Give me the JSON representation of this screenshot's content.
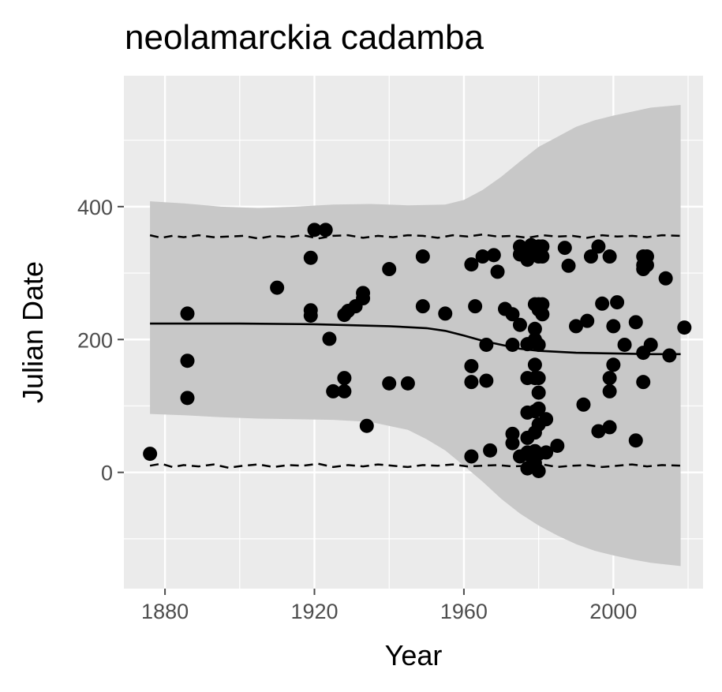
{
  "chart_data": {
    "type": "scatter",
    "title": "neolamarckia cadamba",
    "xlabel": "Year",
    "ylabel": "Julian Date",
    "xlim": [
      1869,
      2024
    ],
    "ylim": [
      -175,
      597
    ],
    "x_ticks": [
      1880,
      1920,
      1960,
      2000
    ],
    "y_ticks": [
      0,
      200,
      400
    ],
    "grid": true,
    "legend": "none",
    "colors": {
      "panel": "#ebebeb",
      "grid": "#ffffff",
      "ribbon": "#c8c8c8",
      "points": "#000000",
      "lines": "#000000",
      "ticks": "#4d4d4d"
    },
    "points": [
      [
        1876,
        28
      ],
      [
        1886,
        239
      ],
      [
        1886,
        168
      ],
      [
        1886,
        112
      ],
      [
        1910,
        278
      ],
      [
        1919,
        323
      ],
      [
        1919,
        244
      ],
      [
        1919,
        236
      ],
      [
        1920,
        365
      ],
      [
        1923,
        365
      ],
      [
        1924,
        201
      ],
      [
        1925,
        122
      ],
      [
        1928,
        142
      ],
      [
        1928,
        122
      ],
      [
        1928,
        237
      ],
      [
        1929,
        243
      ],
      [
        1931,
        250
      ],
      [
        1933,
        270
      ],
      [
        1933,
        262
      ],
      [
        1934,
        70
      ],
      [
        1940,
        306
      ],
      [
        1940,
        134
      ],
      [
        1945,
        134
      ],
      [
        1949,
        325
      ],
      [
        1949,
        250
      ],
      [
        1955,
        239
      ],
      [
        1962,
        313
      ],
      [
        1962,
        160
      ],
      [
        1962,
        136
      ],
      [
        1962,
        24
      ],
      [
        1963,
        250
      ],
      [
        1965,
        325
      ],
      [
        1966,
        192
      ],
      [
        1966,
        138
      ],
      [
        1967,
        33
      ],
      [
        1968,
        327
      ],
      [
        1969,
        302
      ],
      [
        1971,
        246
      ],
      [
        1973,
        238
      ],
      [
        1973,
        192
      ],
      [
        1973,
        58
      ],
      [
        1973,
        44
      ],
      [
        1975,
        340
      ],
      [
        1975,
        328
      ],
      [
        1975,
        222
      ],
      [
        1975,
        24
      ],
      [
        1976,
        330
      ],
      [
        1977,
        336
      ],
      [
        1977,
        320
      ],
      [
        1977,
        193
      ],
      [
        1977,
        142
      ],
      [
        1977,
        90
      ],
      [
        1977,
        52
      ],
      [
        1977,
        30
      ],
      [
        1977,
        6
      ],
      [
        1978,
        342
      ],
      [
        1978,
        330
      ],
      [
        1978,
        24
      ],
      [
        1979,
        216
      ],
      [
        1979,
        200
      ],
      [
        1979,
        162
      ],
      [
        1979,
        253
      ],
      [
        1979,
        142
      ],
      [
        1979,
        92
      ],
      [
        1979,
        60
      ],
      [
        1979,
        32
      ],
      [
        1979,
        14
      ],
      [
        1979,
        8
      ],
      [
        1980,
        340
      ],
      [
        1980,
        325
      ],
      [
        1980,
        253
      ],
      [
        1980,
        245
      ],
      [
        1980,
        192
      ],
      [
        1980,
        142
      ],
      [
        1980,
        120
      ],
      [
        1980,
        96
      ],
      [
        1980,
        72
      ],
      [
        1980,
        28
      ],
      [
        1980,
        2
      ],
      [
        1981,
        340
      ],
      [
        1981,
        325
      ],
      [
        1981,
        253
      ],
      [
        1981,
        238
      ],
      [
        1982,
        80
      ],
      [
        1982,
        30
      ],
      [
        1985,
        40
      ],
      [
        1987,
        338
      ],
      [
        1988,
        311
      ],
      [
        1990,
        220
      ],
      [
        1992,
        102
      ],
      [
        1993,
        228
      ],
      [
        1994,
        325
      ],
      [
        1996,
        340
      ],
      [
        1996,
        62
      ],
      [
        1997,
        254
      ],
      [
        1999,
        325
      ],
      [
        1999,
        142
      ],
      [
        1999,
        122
      ],
      [
        1999,
        68
      ],
      [
        2000,
        220
      ],
      [
        2000,
        162
      ],
      [
        2001,
        256
      ],
      [
        2003,
        192
      ],
      [
        2006,
        226
      ],
      [
        2006,
        48
      ],
      [
        2008,
        325
      ],
      [
        2008,
        312
      ],
      [
        2008,
        306
      ],
      [
        2008,
        180
      ],
      [
        2008,
        136
      ],
      [
        2009,
        325
      ],
      [
        2009,
        312
      ],
      [
        2010,
        192
      ],
      [
        2014,
        292
      ],
      [
        2015,
        176
      ],
      [
        2019,
        218
      ]
    ],
    "fit_line": [
      [
        1876,
        224
      ],
      [
        1900,
        224
      ],
      [
        1920,
        223
      ],
      [
        1940,
        220
      ],
      [
        1950,
        217
      ],
      [
        1955,
        213
      ],
      [
        1960,
        206
      ],
      [
        1965,
        198
      ],
      [
        1970,
        192
      ],
      [
        1975,
        186
      ],
      [
        1980,
        183
      ],
      [
        1990,
        180
      ],
      [
        2000,
        179
      ],
      [
        2010,
        178
      ],
      [
        2018,
        178
      ]
    ],
    "ribbon_upper": [
      [
        1876,
        408
      ],
      [
        1885,
        405
      ],
      [
        1895,
        400
      ],
      [
        1905,
        398
      ],
      [
        1915,
        400
      ],
      [
        1925,
        403
      ],
      [
        1935,
        404
      ],
      [
        1945,
        402
      ],
      [
        1955,
        403
      ],
      [
        1960,
        410
      ],
      [
        1965,
        425
      ],
      [
        1970,
        445
      ],
      [
        1975,
        468
      ],
      [
        1980,
        490
      ],
      [
        1985,
        505
      ],
      [
        1990,
        520
      ],
      [
        1995,
        530
      ],
      [
        2000,
        537
      ],
      [
        2005,
        543
      ],
      [
        2010,
        549
      ],
      [
        2018,
        553
      ]
    ],
    "ribbon_lower": [
      [
        1876,
        88
      ],
      [
        1885,
        86
      ],
      [
        1895,
        83
      ],
      [
        1905,
        81
      ],
      [
        1915,
        80
      ],
      [
        1925,
        79
      ],
      [
        1935,
        76
      ],
      [
        1945,
        64
      ],
      [
        1950,
        50
      ],
      [
        1955,
        33
      ],
      [
        1960,
        10
      ],
      [
        1965,
        -14
      ],
      [
        1970,
        -40
      ],
      [
        1975,
        -62
      ],
      [
        1980,
        -80
      ],
      [
        1985,
        -95
      ],
      [
        1990,
        -108
      ],
      [
        1995,
        -118
      ],
      [
        2000,
        -125
      ],
      [
        2005,
        -131
      ],
      [
        2010,
        -136
      ],
      [
        2018,
        -141
      ]
    ],
    "upper_band": [
      [
        1876,
        357
      ],
      [
        1879,
        353
      ],
      [
        1882,
        356
      ],
      [
        1885,
        354
      ],
      [
        1889,
        357
      ],
      [
        1893,
        354
      ],
      [
        1897,
        355
      ],
      [
        1901,
        356
      ],
      [
        1905,
        352
      ],
      [
        1909,
        356
      ],
      [
        1913,
        354
      ],
      [
        1917,
        357
      ],
      [
        1921,
        352
      ],
      [
        1925,
        356
      ],
      [
        1929,
        357
      ],
      [
        1933,
        353
      ],
      [
        1937,
        356
      ],
      [
        1941,
        354
      ],
      [
        1945,
        357
      ],
      [
        1949,
        356
      ],
      [
        1953,
        353
      ],
      [
        1957,
        357
      ],
      [
        1961,
        355
      ],
      [
        1965,
        358
      ],
      [
        1969,
        355
      ],
      [
        1973,
        356
      ],
      [
        1977,
        353
      ],
      [
        1981,
        357
      ],
      [
        1985,
        355
      ],
      [
        1989,
        356
      ],
      [
        1993,
        353
      ],
      [
        1997,
        357
      ],
      [
        2001,
        355
      ],
      [
        2005,
        356
      ],
      [
        2009,
        354
      ],
      [
        2013,
        357
      ],
      [
        2018,
        356
      ]
    ],
    "lower_band": [
      [
        1876,
        10
      ],
      [
        1879,
        13
      ],
      [
        1882,
        8
      ],
      [
        1885,
        11
      ],
      [
        1889,
        9
      ],
      [
        1893,
        12
      ],
      [
        1897,
        7
      ],
      [
        1901,
        10
      ],
      [
        1905,
        12
      ],
      [
        1909,
        8
      ],
      [
        1913,
        11
      ],
      [
        1917,
        10
      ],
      [
        1921,
        13
      ],
      [
        1925,
        8
      ],
      [
        1929,
        11
      ],
      [
        1933,
        9
      ],
      [
        1937,
        12
      ],
      [
        1941,
        10
      ],
      [
        1945,
        8
      ],
      [
        1949,
        11
      ],
      [
        1953,
        10
      ],
      [
        1957,
        12
      ],
      [
        1961,
        9
      ],
      [
        1965,
        10
      ],
      [
        1969,
        11
      ],
      [
        1973,
        9
      ],
      [
        1977,
        10
      ],
      [
        1981,
        12
      ],
      [
        1985,
        8
      ],
      [
        1989,
        10
      ],
      [
        1993,
        11
      ],
      [
        1997,
        8
      ],
      [
        2001,
        10
      ],
      [
        2005,
        12
      ],
      [
        2009,
        9
      ],
      [
        2013,
        11
      ],
      [
        2018,
        10
      ]
    ]
  }
}
